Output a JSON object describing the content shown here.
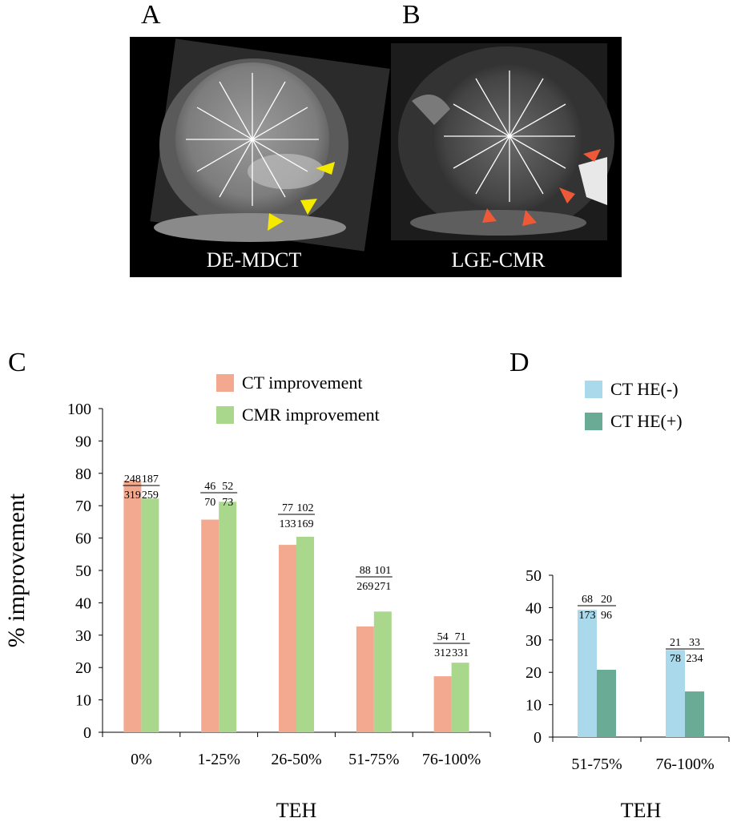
{
  "panels": {
    "a": {
      "letter": "A",
      "caption": "DE-MDCT"
    },
    "b": {
      "letter": "B",
      "caption": "LGE-CMR"
    },
    "c": {
      "letter": "C"
    },
    "d": {
      "letter": "D"
    }
  },
  "colors": {
    "ct": "#f2a98f",
    "cmr": "#a9d88d",
    "he_neg": "#a9d9ea",
    "he_pos": "#6aab96",
    "arrow_a": "#f5e900",
    "arrow_b": "#ee5a37"
  },
  "chart_data": [
    {
      "type": "bar",
      "panel": "C",
      "categories": [
        "0%",
        "1-25%",
        "26-50%",
        "51-75%",
        "76-100%"
      ],
      "series": [
        {
          "name": "CT improvement",
          "values": [
            77.7,
            65.7,
            57.9,
            32.7,
            17.3
          ],
          "labels": [
            [
              "248",
              "319"
            ],
            [
              "46",
              "70"
            ],
            [
              "77",
              "133"
            ],
            [
              "88",
              "269"
            ],
            [
              "54",
              "312"
            ]
          ]
        },
        {
          "name": "CMR improvement",
          "values": [
            72.2,
            71.2,
            60.4,
            37.3,
            21.5
          ],
          "labels": [
            [
              "187",
              "259"
            ],
            [
              "52",
              "73"
            ],
            [
              "102",
              "169"
            ],
            [
              "101",
              "271"
            ],
            [
              "71",
              "331"
            ]
          ]
        }
      ],
      "ylabel": "% improvement",
      "xlabel": "TEH",
      "ylim": [
        0,
        100
      ],
      "yticks": [
        "0",
        "10",
        "20",
        "30",
        "40",
        "50",
        "60",
        "70",
        "80",
        "90",
        "100"
      ],
      "legend": "top"
    },
    {
      "type": "bar",
      "panel": "D",
      "categories": [
        "51-75%",
        "76-100%"
      ],
      "series": [
        {
          "name": "CT HE(-)",
          "values": [
            39.3,
            26.9
          ],
          "labels": [
            [
              "68",
              "173"
            ],
            [
              "21",
              "78"
            ]
          ]
        },
        {
          "name": "CT HE(+)",
          "values": [
            20.8,
            14.1
          ],
          "labels": [
            [
              "20",
              "96"
            ],
            [
              "33",
              "234"
            ]
          ]
        }
      ],
      "xlabel": "TEH",
      "ylim": [
        0,
        50
      ],
      "yticks": [
        "0",
        "10",
        "20",
        "30",
        "40",
        "50"
      ],
      "legend": "top"
    }
  ]
}
